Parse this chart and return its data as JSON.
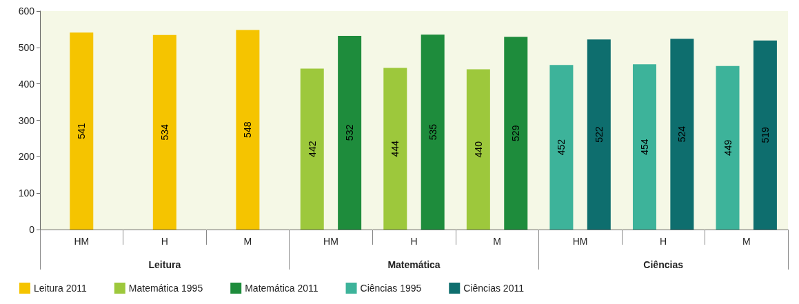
{
  "chart_data": {
    "type": "bar",
    "categories": [
      "HM",
      "H",
      "M",
      "HM",
      "H",
      "M",
      "HM",
      "H",
      "M"
    ],
    "annotations": [
      "Leitura",
      "Matemática",
      "Ciências"
    ],
    "series": [
      {
        "name": "Leitura 2011",
        "color": "#f5c400",
        "values": [
          541,
          534,
          548,
          null,
          null,
          null,
          null,
          null,
          null
        ]
      },
      {
        "name": "Matemática 1995",
        "color": "#9dc83c",
        "values": [
          null,
          null,
          null,
          442,
          444,
          440,
          null,
          null,
          null
        ]
      },
      {
        "name": "Matemática 2011",
        "color": "#1e8c3c",
        "values": [
          null,
          null,
          null,
          532,
          535,
          529,
          null,
          null,
          null
        ]
      },
      {
        "name": "Ciências 1995",
        "color": "#3db39a",
        "values": [
          null,
          null,
          null,
          null,
          null,
          null,
          452,
          454,
          449
        ]
      },
      {
        "name": "Ciências 2011",
        "color": "#0e6e6e",
        "values": [
          null,
          null,
          null,
          null,
          null,
          null,
          522,
          524,
          519
        ]
      }
    ],
    "ylim": [
      0,
      600
    ],
    "yticks": [
      0,
      100,
      200,
      300,
      400,
      500,
      600
    ],
    "data_labels": true,
    "legend": "bottom left"
  }
}
